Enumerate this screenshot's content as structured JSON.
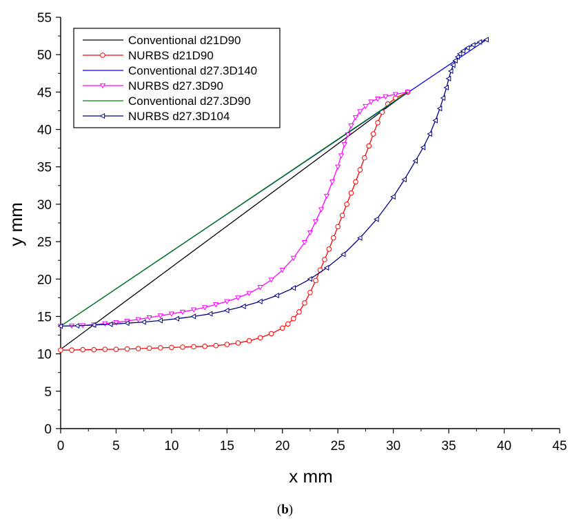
{
  "caption": {
    "open": "(",
    "letter": "b",
    "close": ")"
  },
  "chart_data": {
    "type": "line",
    "xlabel": "x mm",
    "ylabel": "y mm",
    "xlim": [
      0,
      45
    ],
    "ylim": [
      0,
      55
    ],
    "xticks": [
      0,
      5,
      10,
      15,
      20,
      25,
      30,
      35,
      40,
      45
    ],
    "yticks": [
      0,
      5,
      10,
      15,
      20,
      25,
      30,
      35,
      40,
      45,
      50,
      55
    ],
    "grid": false,
    "legend_position": "top-left",
    "series": [
      {
        "name": "Conventional d21D90",
        "color": "#000000",
        "marker": "none",
        "x": [
          0,
          31.3
        ],
        "y": [
          10.6,
          45.0
        ]
      },
      {
        "name": "NURBS d21D90",
        "color": "#ff0000",
        "marker": "circle",
        "x": [
          0,
          1,
          2,
          3,
          4,
          5,
          6,
          7,
          8,
          9,
          10,
          11,
          12,
          13,
          14,
          15,
          16,
          17,
          18,
          19,
          20,
          20.5,
          21,
          21.5,
          22,
          22.5,
          23,
          23.4,
          23.8,
          24.2,
          24.6,
          25,
          25.4,
          25.8,
          26.2,
          26.6,
          27,
          27.4,
          27.8,
          28.2,
          28.6,
          29,
          29.5,
          30.2,
          31.3
        ],
        "y": [
          10.5,
          10.5,
          10.55,
          10.55,
          10.6,
          10.6,
          10.65,
          10.7,
          10.75,
          10.8,
          10.85,
          10.9,
          10.95,
          11.0,
          11.1,
          11.25,
          11.45,
          11.75,
          12.15,
          12.7,
          13.45,
          14.0,
          14.7,
          15.6,
          16.8,
          18.2,
          19.8,
          21.2,
          22.6,
          24.0,
          25.5,
          27.0,
          28.5,
          30.0,
          31.5,
          33.0,
          34.6,
          36.2,
          37.8,
          39.4,
          40.9,
          42.3,
          43.4,
          44.2,
          45.0
        ]
      },
      {
        "name": "Conventional d27.3D140",
        "color": "#0000ff",
        "marker": "none",
        "x": [
          0,
          38.4
        ],
        "y": [
          13.7,
          52.0
        ]
      },
      {
        "name": "NURBS d27.3D90",
        "color": "#ff00ff",
        "marker": "triangle-down",
        "x": [
          0,
          1,
          2,
          3,
          4,
          5,
          6,
          7,
          8,
          9,
          10,
          11,
          12,
          13,
          14,
          15,
          16,
          17,
          18,
          19,
          20,
          21,
          22,
          22.5,
          23,
          23.5,
          24,
          24.5,
          25,
          25.3,
          25.6,
          25.9,
          26.2,
          26.6,
          27,
          27.5,
          28,
          28.6,
          29.3,
          30.2,
          31.3
        ],
        "y": [
          13.7,
          13.75,
          13.8,
          13.9,
          14.05,
          14.2,
          14.4,
          14.6,
          14.85,
          15.1,
          15.35,
          15.6,
          15.9,
          16.2,
          16.6,
          17.0,
          17.5,
          18.1,
          18.9,
          19.9,
          21.2,
          22.8,
          24.9,
          26.2,
          27.7,
          29.3,
          31.1,
          33.0,
          35.0,
          36.5,
          38.0,
          39.3,
          40.5,
          41.6,
          42.4,
          43.1,
          43.7,
          44.1,
          44.4,
          44.7,
          45.0
        ]
      },
      {
        "name": "Conventional d27.3D90",
        "color": "#008000",
        "marker": "none",
        "x": [
          0,
          31.3
        ],
        "y": [
          13.7,
          45.0
        ]
      },
      {
        "name": "NURBS d27.3D104",
        "color": "#000080",
        "marker": "triangle-left",
        "x": [
          0,
          1.5,
          3,
          4.5,
          6,
          7.5,
          9,
          10.5,
          12,
          13.5,
          15,
          16.5,
          18,
          19.5,
          21,
          22.5,
          24,
          25.5,
          27,
          28.5,
          30,
          31,
          32,
          32.7,
          33.3,
          33.8,
          34.2,
          34.5,
          34.8,
          35,
          35.2,
          35.4,
          35.6,
          35.8,
          36,
          36.3,
          36.7,
          37.2,
          37.8,
          38.4
        ],
        "y": [
          13.7,
          13.75,
          13.85,
          13.95,
          14.1,
          14.25,
          14.45,
          14.7,
          15.0,
          15.35,
          15.8,
          16.35,
          17.0,
          17.8,
          18.8,
          20.0,
          21.5,
          23.3,
          25.5,
          28.0,
          31.0,
          33.3,
          35.8,
          37.6,
          39.4,
          41.2,
          42.8,
          44.2,
          45.6,
          46.8,
          47.8,
          48.6,
          49.2,
          49.7,
          50.1,
          50.5,
          50.9,
          51.3,
          51.7,
          52.0
        ]
      }
    ]
  }
}
